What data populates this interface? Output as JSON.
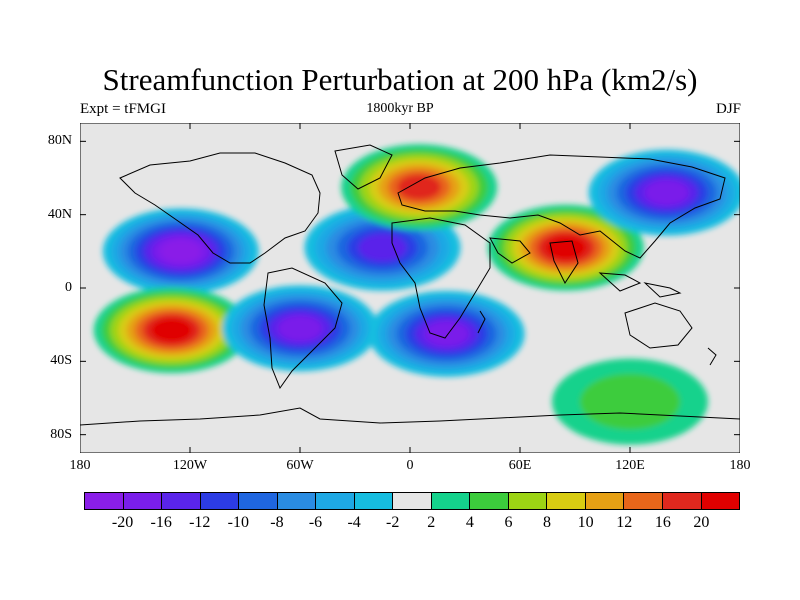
{
  "title": "Streamfunction Perturbation at 200 hPa (km2/s)",
  "subtitle_left": "Expt = tFMGI",
  "subtitle_center": "1800kyr BP",
  "subtitle_right": "DJF",
  "chart_data": {
    "type": "heatmap",
    "projection": "cylindrical equidistant",
    "variable": "streamfunction perturbation",
    "level": "200 hPa",
    "units": "km2/s",
    "x_range": [
      -180,
      180
    ],
    "y_range": [
      -90,
      90
    ],
    "lat_ticks": [
      "80N",
      "40N",
      "0",
      "40S",
      "80S"
    ],
    "lon_ticks": [
      "180",
      "120W",
      "60W",
      "0",
      "60E",
      "120E",
      "180"
    ],
    "colorbar": {
      "levels": [
        "-20",
        "-16",
        "-12",
        "-10",
        "-8",
        "-6",
        "-4",
        "-2",
        "2",
        "4",
        "6",
        "8",
        "10",
        "12",
        "16",
        "20"
      ],
      "colors": [
        "#8a1ee8",
        "#7a1eea",
        "#5a24ea",
        "#2c3ce4",
        "#1f66e0",
        "#2a8ce2",
        "#1ea8e4",
        "#16bde0",
        "#e6e6e6",
        "#14d28c",
        "#3ccc3c",
        "#9cd414",
        "#d8cc12",
        "#e6a014",
        "#e8661a",
        "#e0281e",
        "#e00000"
      ]
    },
    "anomalies": [
      {
        "label": "negative",
        "lon": -125,
        "lat": 20,
        "value": -20
      },
      {
        "label": "positive",
        "lon": -130,
        "lat": -23,
        "value": 20
      },
      {
        "label": "negative",
        "lon": -60,
        "lat": -22,
        "value": -16
      },
      {
        "label": "negative",
        "lon": -15,
        "lat": 22,
        "value": -14
      },
      {
        "label": "negative",
        "lon": 20,
        "lat": -25,
        "value": -18
      },
      {
        "label": "positive",
        "lon": 5,
        "lat": 55,
        "value": 16
      },
      {
        "label": "positive",
        "lon": 85,
        "lat": 22,
        "value": 20
      },
      {
        "label": "negative",
        "lon": 140,
        "lat": 52,
        "value": -18
      },
      {
        "label": "positive",
        "lon": 120,
        "lat": -62,
        "value": 4
      }
    ]
  }
}
